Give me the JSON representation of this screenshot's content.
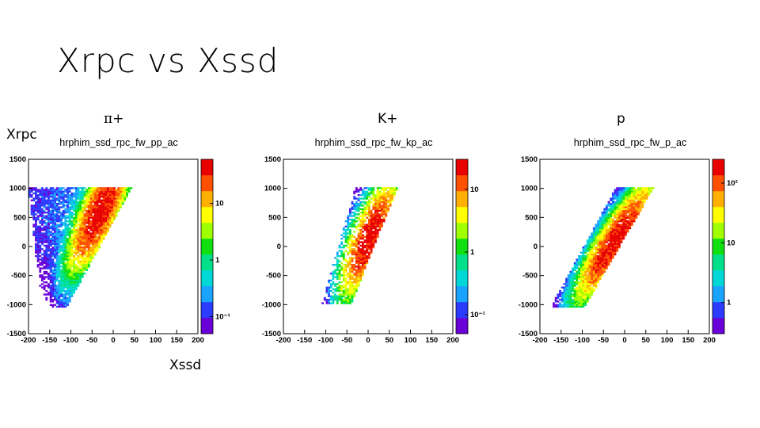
{
  "slide": {
    "title": "Xrpc vs Xssd",
    "y_label": "Xrpc",
    "x_label": "Xssd"
  },
  "panels": [
    {
      "particle": "π+"
    },
    {
      "particle": "K+"
    },
    {
      "particle": "p"
    }
  ],
  "colors": {
    "palette": [
      "#6a00d8",
      "#2b3bff",
      "#1aa3ff",
      "#00d8d8",
      "#00e08a",
      "#10e010",
      "#a0ff00",
      "#ffff00",
      "#ffb000",
      "#ff5000",
      "#e80000"
    ]
  },
  "chart_data": [
    {
      "type": "heatmap",
      "title": "hrphim_ssd_rpc_fw_pp_ac",
      "x_ticks": [
        -200,
        -150,
        -100,
        -50,
        0,
        50,
        100,
        150,
        200
      ],
      "y_ticks": [
        1500,
        1000,
        500,
        0,
        -500,
        -1000,
        -1500
      ],
      "xlim": [
        -200,
        200
      ],
      "ylim": [
        -1500,
        1500
      ],
      "z_scale": "log",
      "z_ticks": [
        "10",
        "1",
        "10⁻¹"
      ],
      "z_tick_values": [
        10,
        1,
        0.1
      ],
      "zlim": [
        0.05,
        60
      ],
      "band": {
        "x_lo_at_ymin": -170,
        "x_hi_at_ymin": -110,
        "x_lo_at_ymax": -200,
        "x_hi_at_ymax": 45,
        "ymin": -1050,
        "ymax": 1020,
        "peak_x_at_ymax": 20,
        "peak_y": 600
      }
    },
    {
      "type": "heatmap",
      "title": "hrphim_ssd_rpc_fw_kp_ac",
      "x_ticks": [
        -200,
        -150,
        -100,
        -50,
        0,
        50,
        100,
        150,
        200
      ],
      "y_ticks": [
        1500,
        1000,
        500,
        0,
        -500,
        -1000,
        -1500
      ],
      "xlim": [
        -200,
        200
      ],
      "ylim": [
        -1500,
        1500
      ],
      "z_scale": "log",
      "z_ticks": [
        "10",
        "1",
        "10⁻¹"
      ],
      "z_tick_values": [
        10,
        1,
        0.1
      ],
      "zlim": [
        0.05,
        30
      ],
      "band": {
        "x_lo_at_ymin": -110,
        "x_hi_at_ymin": -40,
        "x_lo_at_ymax": -30,
        "x_hi_at_ymax": 70,
        "ymin": -1000,
        "ymax": 1020,
        "peak_x_at_ymax": 20,
        "peak_y": 150
      }
    },
    {
      "type": "heatmap",
      "title": "hrphim_ssd_rpc_fw_p_ac",
      "x_ticks": [
        -200,
        -150,
        -100,
        -50,
        0,
        50,
        100,
        150,
        200
      ],
      "y_ticks": [
        1500,
        1000,
        500,
        0,
        -500,
        -1000,
        -1500
      ],
      "xlim": [
        -200,
        200
      ],
      "ylim": [
        -1500,
        1500
      ],
      "z_scale": "log",
      "z_ticks": [
        "10²",
        "10",
        "1"
      ],
      "z_tick_values": [
        100,
        10,
        1
      ],
      "zlim": [
        0.3,
        250
      ],
      "band": {
        "x_lo_at_ymin": -175,
        "x_hi_at_ymin": -95,
        "x_lo_at_ymax": -20,
        "x_hi_at_ymax": 70,
        "ymin": -1050,
        "ymax": 1020,
        "peak_x_at_ymax": 55,
        "peak_y": 100
      }
    }
  ]
}
